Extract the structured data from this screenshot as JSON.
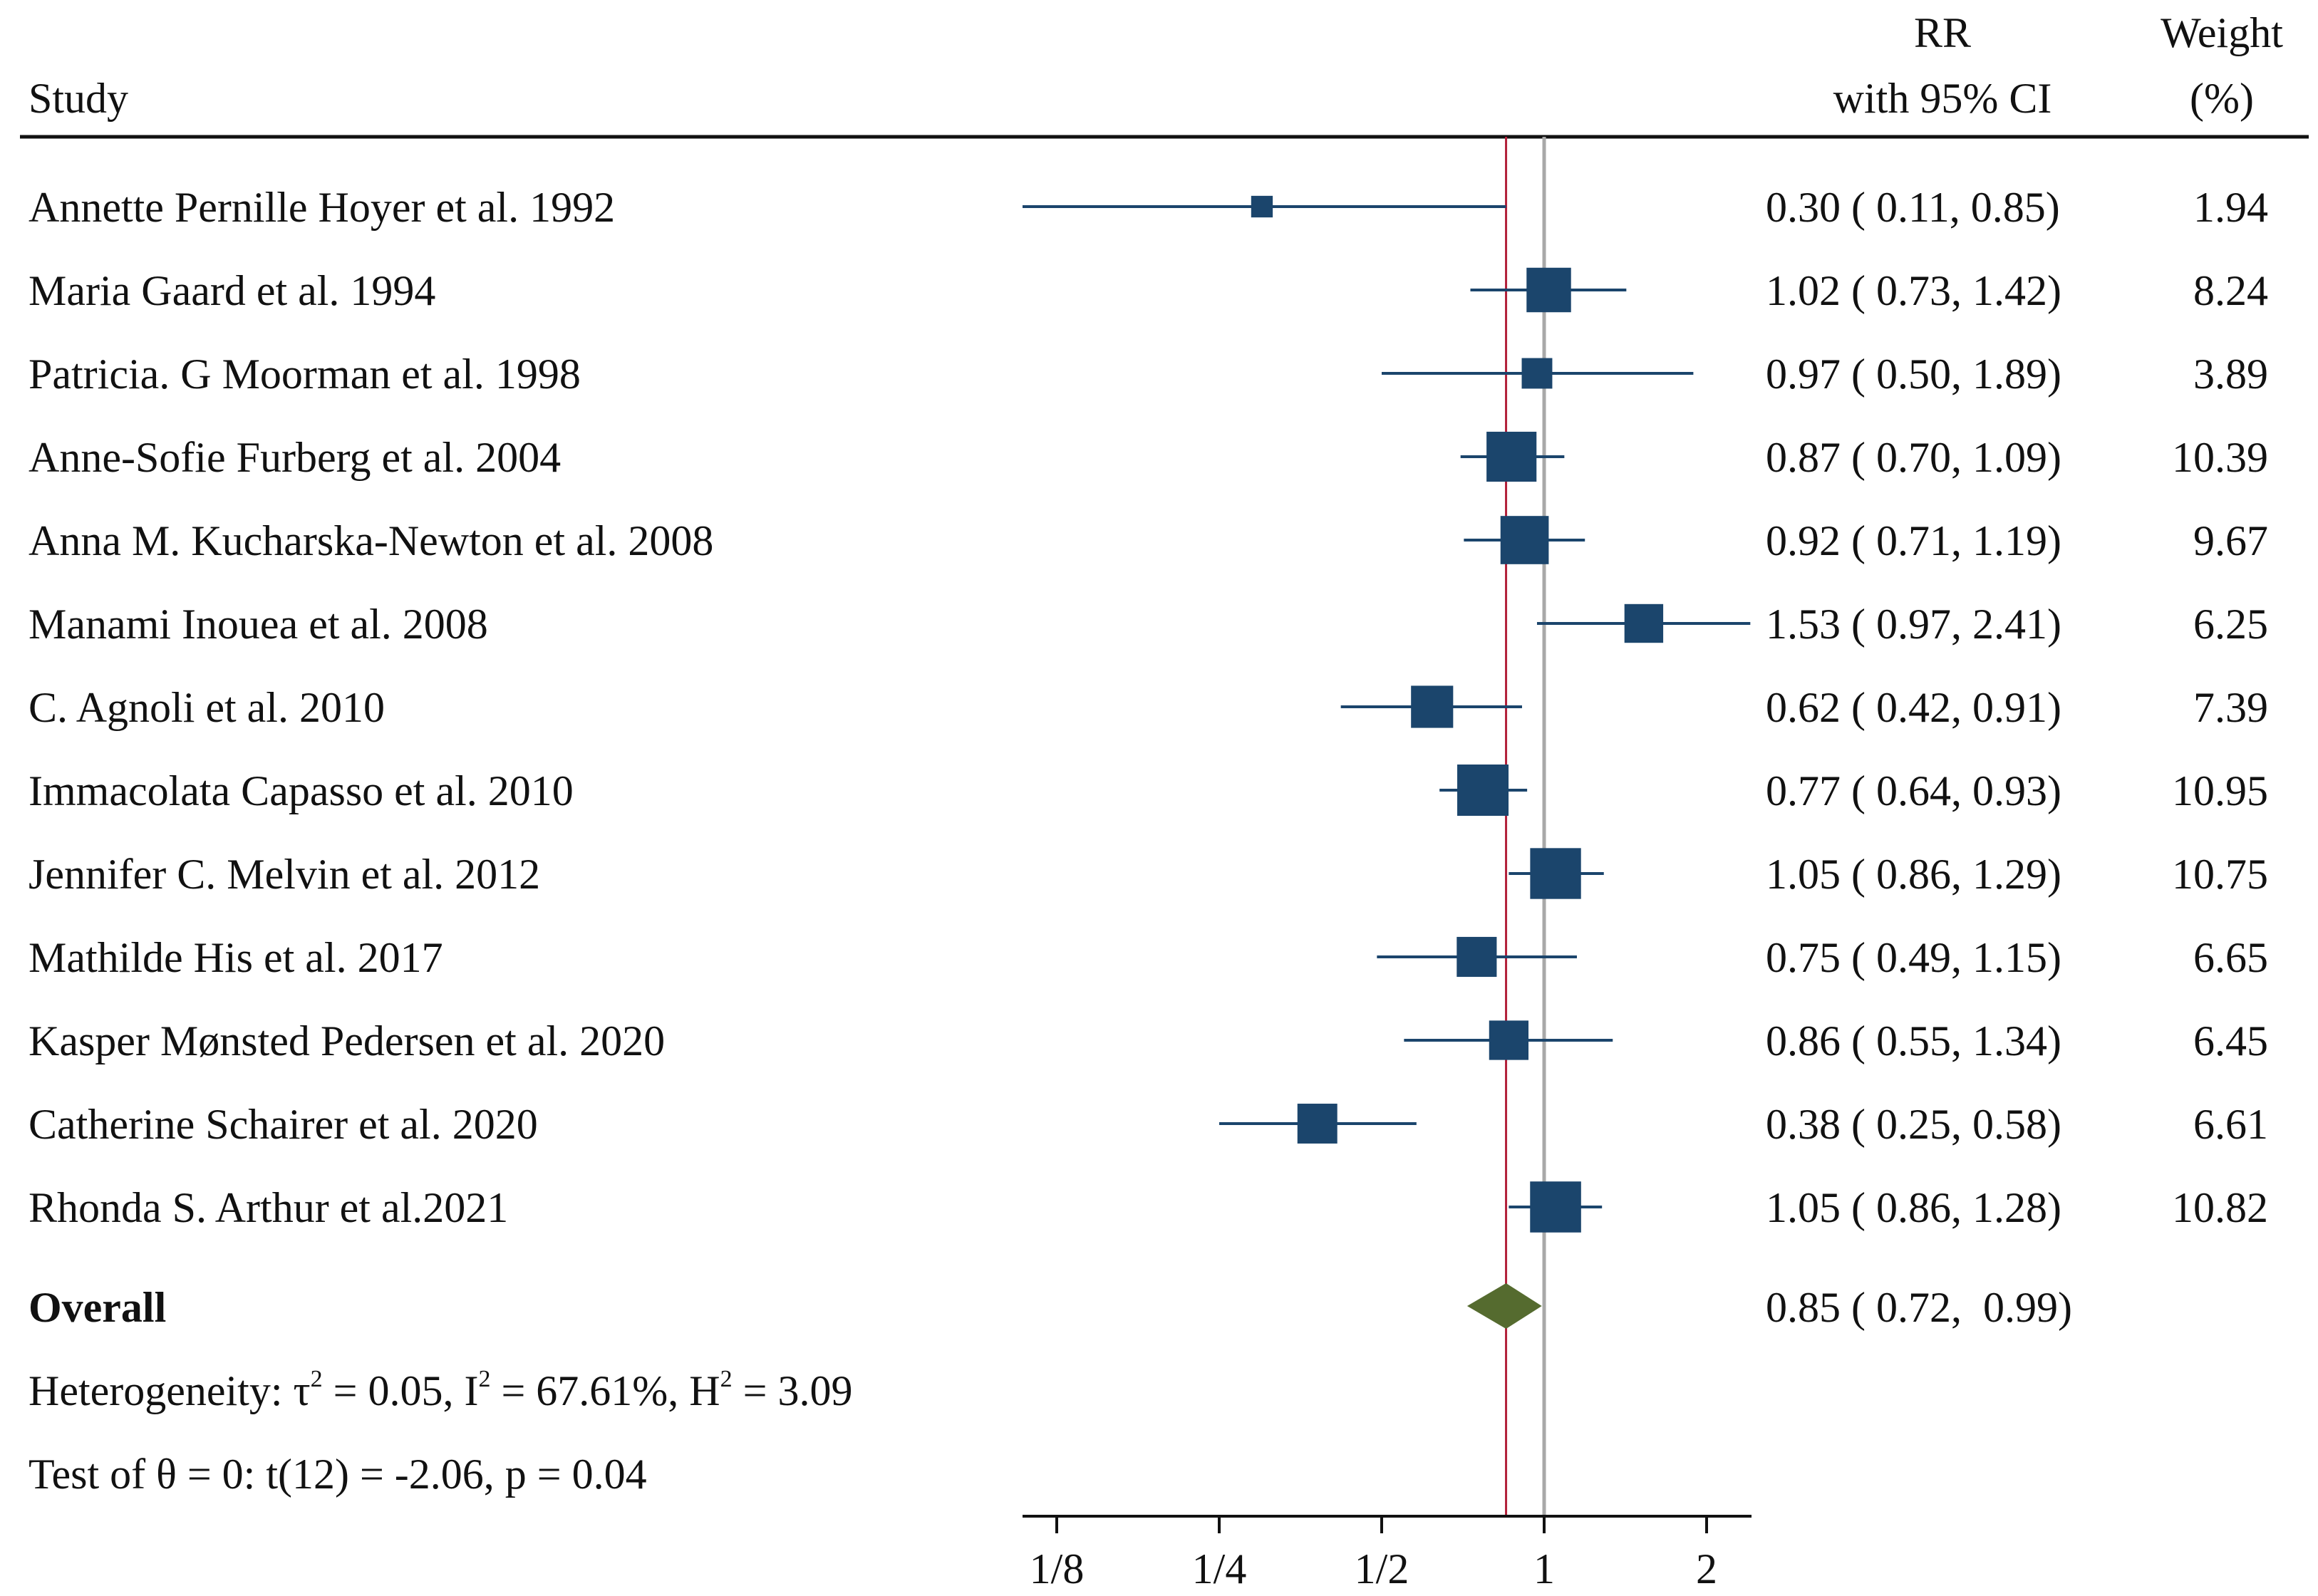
{
  "header": {
    "study": "Study",
    "rr_line1": "RR",
    "rr_line2": "with 95% CI",
    "weight_line1": "Weight",
    "weight_line2": "(%)"
  },
  "chart_data": {
    "type": "forest",
    "x_scale": "log2",
    "x_ticks": [
      {
        "value": 0.125,
        "label": "1/8"
      },
      {
        "value": 0.25,
        "label": "1/4"
      },
      {
        "value": 0.5,
        "label": "1/2"
      },
      {
        "value": 1,
        "label": "1"
      },
      {
        "value": 2,
        "label": "2"
      }
    ],
    "reference_line": 1,
    "overall_line": 0.85,
    "colors": {
      "marker": "#1b456c",
      "diamond": "#556b2f",
      "overall_line": "#b2203a",
      "reference_line": "#a8a8a8",
      "rule": "#111111"
    },
    "studies": [
      {
        "label": "Annette Pernille Hoyer et al. 1992",
        "rr": 0.3,
        "lo": 0.11,
        "hi": 0.85,
        "rr_text": "0.30 ( 0.11,  0.85)",
        "weight": 1.94,
        "weight_text": "1.94",
        "clip_left": true
      },
      {
        "label": "Maria Gaard et al. 1994",
        "rr": 1.02,
        "lo": 0.73,
        "hi": 1.42,
        "rr_text": "1.02 ( 0.73,  1.42)",
        "weight": 8.24,
        "weight_text": "8.24"
      },
      {
        "label": "Patricia. G Moorman et al. 1998",
        "rr": 0.97,
        "lo": 0.5,
        "hi": 1.89,
        "rr_text": "0.97 ( 0.50,  1.89)",
        "weight": 3.89,
        "weight_text": "3.89"
      },
      {
        "label": "Anne-Sofie Furberg et al. 2004",
        "rr": 0.87,
        "lo": 0.7,
        "hi": 1.09,
        "rr_text": "0.87 ( 0.70,  1.09)",
        "weight": 10.39,
        "weight_text": "10.39"
      },
      {
        "label": "Anna  M. Kucharska-Newton et al. 2008",
        "rr": 0.92,
        "lo": 0.71,
        "hi": 1.19,
        "rr_text": "0.92 ( 0.71,  1.19)",
        "weight": 9.67,
        "weight_text": "9.67"
      },
      {
        "label": "Manami Inouea et al. 2008",
        "rr": 1.53,
        "lo": 0.97,
        "hi": 2.41,
        "rr_text": "1.53 ( 0.97,  2.41)",
        "weight": 6.25,
        "weight_text": "6.25"
      },
      {
        "label": "C. Agnoli et al. 2010",
        "rr": 0.62,
        "lo": 0.42,
        "hi": 0.91,
        "rr_text": "0.62 ( 0.42,  0.91)",
        "weight": 7.39,
        "weight_text": "7.39"
      },
      {
        "label": "Immacolata Capasso et al. 2010",
        "rr": 0.77,
        "lo": 0.64,
        "hi": 0.93,
        "rr_text": "0.77 ( 0.64,  0.93)",
        "weight": 10.95,
        "weight_text": "10.95"
      },
      {
        "label": "Jennifer C. Melvin et al. 2012",
        "rr": 1.05,
        "lo": 0.86,
        "hi": 1.29,
        "rr_text": "1.05 ( 0.86,  1.29)",
        "weight": 10.75,
        "weight_text": "10.75"
      },
      {
        "label": "Mathilde His et al. 2017",
        "rr": 0.75,
        "lo": 0.49,
        "hi": 1.15,
        "rr_text": "0.75 ( 0.49,  1.15)",
        "weight": 6.65,
        "weight_text": "6.65"
      },
      {
        "label": "Kasper Mønsted Pedersen et al. 2020",
        "rr": 0.86,
        "lo": 0.55,
        "hi": 1.34,
        "rr_text": "0.86 ( 0.55,  1.34)",
        "weight": 6.45,
        "weight_text": "6.45"
      },
      {
        "label": "Catherine Schairer et al. 2020",
        "rr": 0.38,
        "lo": 0.25,
        "hi": 0.58,
        "rr_text": "0.38 ( 0.25,  0.58)",
        "weight": 6.61,
        "weight_text": "6.61"
      },
      {
        "label": "Rhonda S. Arthur et al.2021",
        "rr": 1.05,
        "lo": 0.86,
        "hi": 1.28,
        "rr_text": "1.05 ( 0.86,  1.28)",
        "weight": 10.82,
        "weight_text": "10.82"
      }
    ],
    "overall": {
      "label": "Overall",
      "rr": 0.85,
      "lo": 0.72,
      "hi": 0.99,
      "rr_text": "0.85 ( 0.72,  0.99)"
    },
    "heterogeneity": {
      "prefix": "Heterogeneity: τ",
      "tau_sup": "2",
      "tau_value": " = 0.05, I",
      "i_sup": "2",
      "i_value": " = 67.61%, H",
      "h_sup": "2",
      "h_value": " = 3.09"
    },
    "test": "Test of θ = 0: t(12) = -2.06, p = 0.04"
  }
}
